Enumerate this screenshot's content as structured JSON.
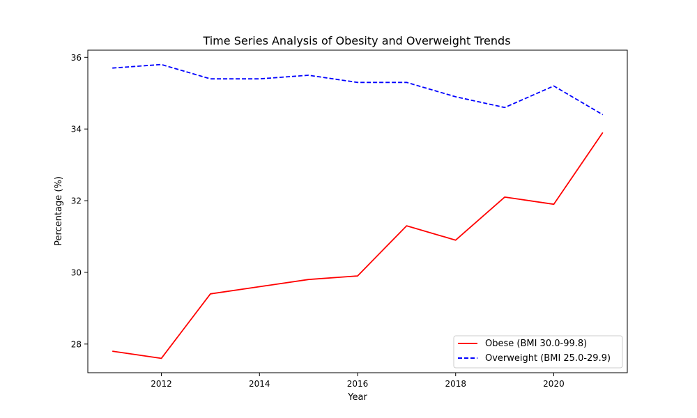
{
  "chart_data": {
    "type": "line",
    "title": "Time Series Analysis of Obesity and Overweight Trends",
    "xlabel": "Year",
    "ylabel": "Percentage (%)",
    "xlim": [
      2010.5,
      2021.5
    ],
    "ylim": [
      27.2,
      36.2
    ],
    "xticks": [
      2012,
      2014,
      2016,
      2018,
      2020
    ],
    "yticks": [
      28,
      30,
      32,
      34,
      36
    ],
    "grid": false,
    "legend_position": "lower-right",
    "x": [
      2011,
      2012,
      2013,
      2014,
      2015,
      2016,
      2017,
      2018,
      2019,
      2020,
      2021
    ],
    "series": [
      {
        "name": "Obese (BMI 30.0-99.8)",
        "color": "#ff0000",
        "style": "solid",
        "values": [
          27.8,
          27.6,
          29.4,
          29.6,
          29.8,
          29.9,
          31.3,
          30.9,
          32.1,
          31.9,
          33.9
        ]
      },
      {
        "name": "Overweight (BMI 25.0-29.9)",
        "color": "#0000ff",
        "style": "dashed",
        "values": [
          35.7,
          35.8,
          35.4,
          35.4,
          35.5,
          35.3,
          35.3,
          34.9,
          34.6,
          35.2,
          34.4
        ]
      }
    ]
  }
}
